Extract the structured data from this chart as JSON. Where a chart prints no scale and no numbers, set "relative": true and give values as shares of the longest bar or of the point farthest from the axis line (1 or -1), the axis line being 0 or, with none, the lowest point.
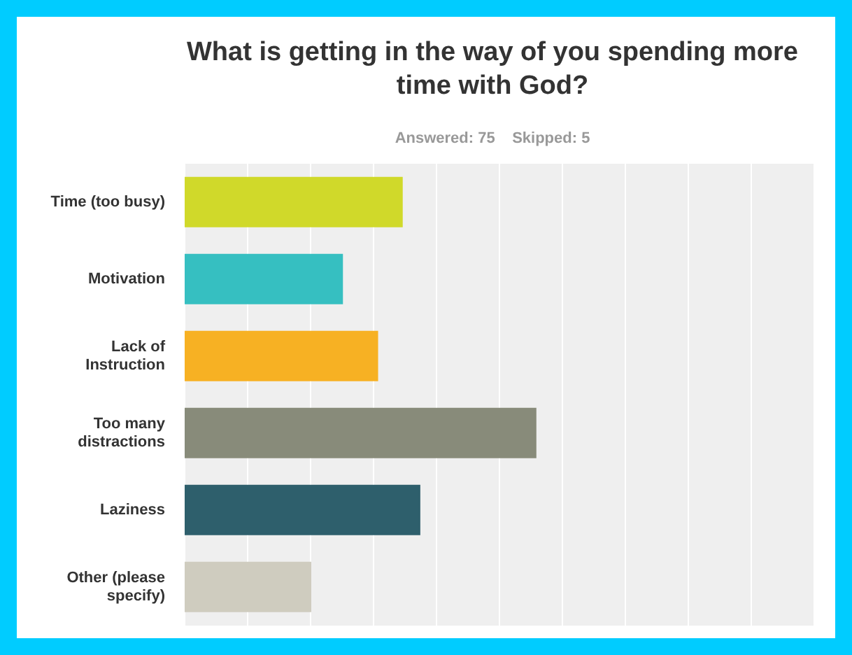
{
  "chart_data": {
    "type": "bar",
    "orientation": "horizontal",
    "relative": true,
    "title": "What is getting in the way of you spending more time with God?",
    "subtitle": "Answered: 75    Skipped: 5",
    "categories": [
      "Time (too busy)",
      "Motivation",
      "Lack of Instruction",
      "Too many distractions",
      "Laziness",
      "Other (please specify)"
    ],
    "values": [
      0.62,
      0.45,
      0.55,
      1,
      0.67,
      0.36
    ],
    "colors": [
      "#d0d92a",
      "#36bfc1",
      "#f7b123",
      "#888b7a",
      "#2e5f6c",
      "#cfccbf"
    ],
    "grid": "x"
  }
}
